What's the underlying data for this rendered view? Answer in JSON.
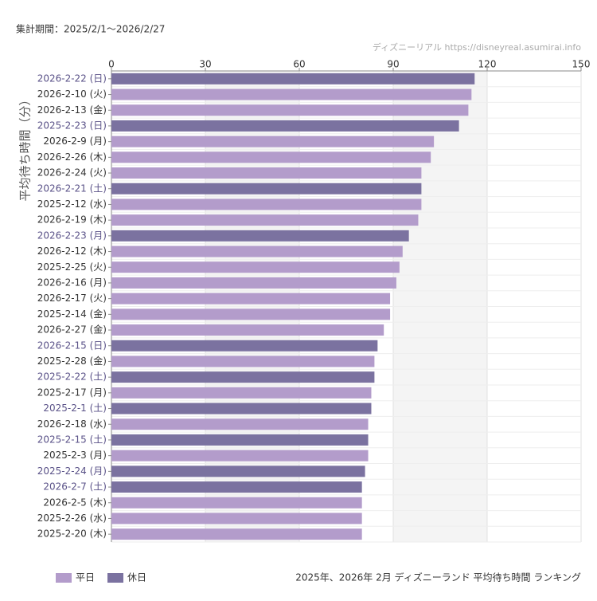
{
  "chart_data": {
    "type": "bar",
    "orientation": "horizontal",
    "period": "集計期間：2025/2/1～2026/2/27",
    "source": "ディズニーリアル https://disneyreal.asumirai.info",
    "title": "2025年、2026年 2月 ディズニーランド 平均待ち時間 ランキング",
    "y_label": "平均待ち時間（分）",
    "categories": [
      "2026-2-22 (日)",
      "2026-2-10 (火)",
      "2026-2-13 (金)",
      "2025-2-23 (日)",
      "2026-2-9 (月)",
      "2026-2-26 (木)",
      "2026-2-24 (火)",
      "2026-2-21 (土)",
      "2025-2-12 (水)",
      "2026-2-19 (木)",
      "2026-2-23 (月)",
      "2026-2-12 (木)",
      "2025-2-25 (火)",
      "2026-2-16 (月)",
      "2026-2-17 (火)",
      "2025-2-14 (金)",
      "2026-2-27 (金)",
      "2026-2-15 (日)",
      "2025-2-28 (金)",
      "2025-2-22 (土)",
      "2025-2-17 (月)",
      "2025-2-1 (土)",
      "2026-2-18 (水)",
      "2025-2-15 (土)",
      "2025-2-3 (月)",
      "2025-2-24 (月)",
      "2026-2-7 (土)",
      "2026-2-5 (木)",
      "2025-2-26 (水)",
      "2025-2-20 (木)"
    ],
    "series": [
      {
        "name": "平日",
        "color": "#b39ccb",
        "values": [
          null,
          115,
          114,
          null,
          103,
          102,
          99,
          null,
          99,
          98,
          null,
          93,
          92,
          91,
          89,
          89,
          87,
          null,
          84,
          null,
          83,
          null,
          82,
          null,
          82,
          null,
          null,
          80,
          80,
          80
        ]
      },
      {
        "name": "休日",
        "color": "#7b72a0",
        "values": [
          116,
          null,
          null,
          111,
          null,
          null,
          null,
          99,
          null,
          null,
          95,
          null,
          null,
          null,
          null,
          null,
          null,
          85,
          null,
          84,
          null,
          83,
          null,
          82,
          null,
          81,
          80,
          null,
          null,
          null
        ]
      }
    ],
    "xlim": [
      0,
      150
    ],
    "xticks": [
      0,
      30,
      60,
      90,
      120,
      150
    ],
    "grid": true
  }
}
